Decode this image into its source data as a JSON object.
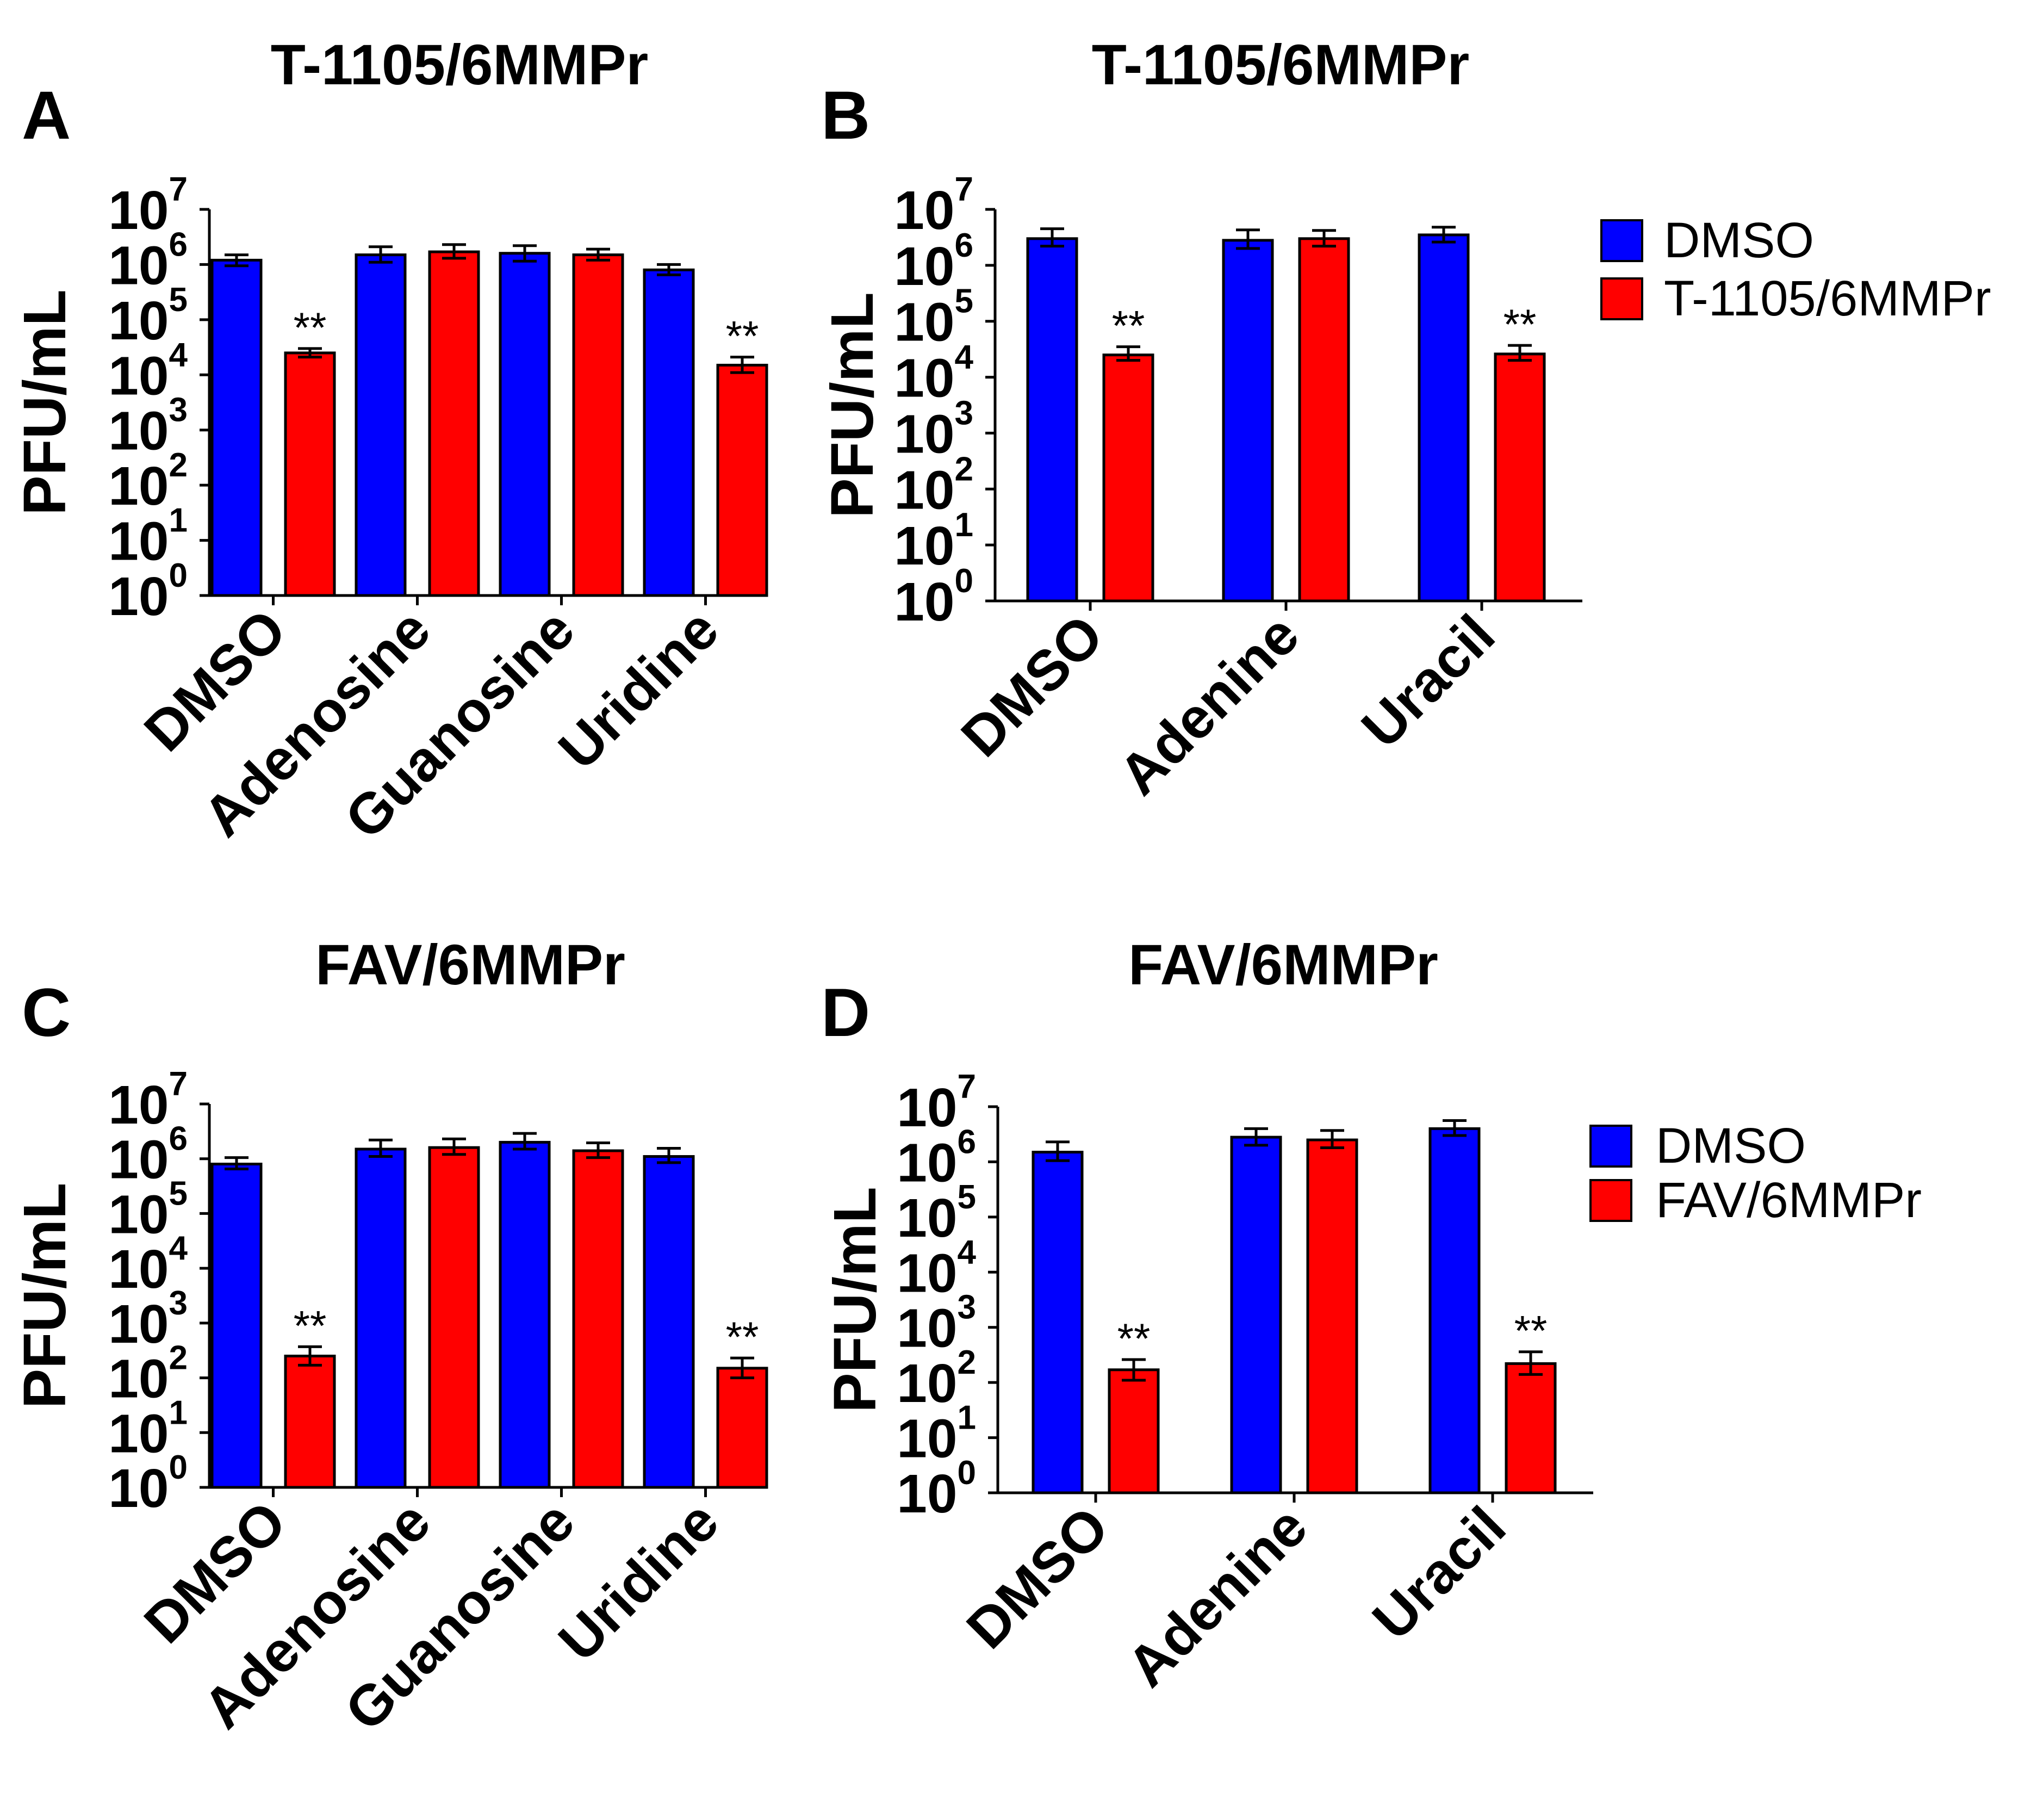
{
  "chart_data": [
    {
      "type": "bar",
      "panel_label": "A",
      "title": "T-1105/6MMPr",
      "ylabel": "PFU/mL",
      "yscale": "log",
      "ylim": [
        1,
        10000000
      ],
      "y_ticks": [
        {
          "base": "10",
          "exp": "0"
        },
        {
          "base": "10",
          "exp": "1"
        },
        {
          "base": "10",
          "exp": "2"
        },
        {
          "base": "10",
          "exp": "3"
        },
        {
          "base": "10",
          "exp": "4"
        },
        {
          "base": "10",
          "exp": "5"
        },
        {
          "base": "10",
          "exp": "6"
        },
        {
          "base": "10",
          "exp": "7"
        }
      ],
      "categories": [
        "DMSO",
        "Adenosine",
        "Guanosine",
        "Uridine"
      ],
      "series": [
        {
          "name": "DMSO",
          "color": "#0000ff",
          "values": [
            1200000,
            1500000,
            1600000,
            800000
          ],
          "err_low": [
            950000,
            1100000,
            1150000,
            650000
          ],
          "err_high": [
            1500000,
            2100000,
            2200000,
            1000000
          ]
        },
        {
          "name": "T-1105/6MMPr",
          "color": "#ff0000",
          "values": [
            25000,
            1700000,
            1500000,
            15000
          ],
          "err_low": [
            21000,
            1300000,
            1200000,
            11000
          ],
          "err_high": [
            30000,
            2300000,
            1900000,
            21000
          ]
        }
      ],
      "annotations": [
        {
          "series": 1,
          "category": 0,
          "text": "**"
        },
        {
          "series": 1,
          "category": 3,
          "text": "**"
        }
      ]
    },
    {
      "type": "bar",
      "panel_label": "B",
      "title": "T-1105/6MMPr",
      "ylabel": "PFU/mL",
      "yscale": "log",
      "ylim": [
        1,
        10000000
      ],
      "y_ticks": [
        {
          "base": "10",
          "exp": "0"
        },
        {
          "base": "10",
          "exp": "1"
        },
        {
          "base": "10",
          "exp": "2"
        },
        {
          "base": "10",
          "exp": "3"
        },
        {
          "base": "10",
          "exp": "4"
        },
        {
          "base": "10",
          "exp": "5"
        },
        {
          "base": "10",
          "exp": "6"
        },
        {
          "base": "10",
          "exp": "7"
        }
      ],
      "categories": [
        "DMSO",
        "Adenine",
        "Uracil"
      ],
      "series": [
        {
          "name": "DMSO",
          "color": "#0000ff",
          "values": [
            3000000,
            2800000,
            3500000
          ],
          "err_low": [
            2200000,
            2000000,
            2600000
          ],
          "err_high": [
            4500000,
            4300000,
            4800000
          ]
        },
        {
          "name": "T-1105/6MMPr",
          "color": "#ff0000",
          "values": [
            25000,
            3000000,
            26000
          ],
          "err_low": [
            20000,
            2200000,
            20000
          ],
          "err_high": [
            35000,
            4200000,
            37000
          ]
        }
      ],
      "annotations": [
        {
          "series": 1,
          "category": 0,
          "text": "**"
        },
        {
          "series": 1,
          "category": 2,
          "text": "**"
        }
      ],
      "legend": {
        "position": "right",
        "entries": [
          {
            "label": "DMSO",
            "color": "#0000ff"
          },
          {
            "label": "T-1105/6MMPr",
            "color": "#ff0000"
          }
        ]
      }
    },
    {
      "type": "bar",
      "panel_label": "C",
      "title": "FAV/6MMPr",
      "ylabel": "PFU/mL",
      "yscale": "log",
      "ylim": [
        1,
        10000000
      ],
      "y_ticks": [
        {
          "base": "10",
          "exp": "0"
        },
        {
          "base": "10",
          "exp": "1"
        },
        {
          "base": "10",
          "exp": "2"
        },
        {
          "base": "10",
          "exp": "3"
        },
        {
          "base": "10",
          "exp": "4"
        },
        {
          "base": "10",
          "exp": "5"
        },
        {
          "base": "10",
          "exp": "6"
        },
        {
          "base": "10",
          "exp": "7"
        }
      ],
      "categories": [
        "DMSO",
        "Adenosine",
        "Guanosine",
        "Uridine"
      ],
      "series": [
        {
          "name": "DMSO",
          "color": "#0000ff",
          "values": [
            800000,
            1500000,
            2000000,
            1100000
          ],
          "err_low": [
            650000,
            1100000,
            1500000,
            850000
          ],
          "err_high": [
            1050000,
            2200000,
            2900000,
            1550000
          ]
        },
        {
          "name": "FAV/6MMPr",
          "color": "#ff0000",
          "values": [
            250,
            1600000,
            1400000,
            150
          ],
          "err_low": [
            170,
            1200000,
            1050000,
            100
          ],
          "err_high": [
            370,
            2300000,
            1950000,
            230
          ]
        }
      ],
      "annotations": [
        {
          "series": 1,
          "category": 0,
          "text": "**"
        },
        {
          "series": 1,
          "category": 3,
          "text": "**"
        }
      ]
    },
    {
      "type": "bar",
      "panel_label": "D",
      "title": "FAV/6MMPr",
      "ylabel": "PFU/mL",
      "yscale": "log",
      "ylim": [
        1,
        10000000
      ],
      "y_ticks": [
        {
          "base": "10",
          "exp": "0"
        },
        {
          "base": "10",
          "exp": "1"
        },
        {
          "base": "10",
          "exp": "2"
        },
        {
          "base": "10",
          "exp": "3"
        },
        {
          "base": "10",
          "exp": "4"
        },
        {
          "base": "10",
          "exp": "5"
        },
        {
          "base": "10",
          "exp": "6"
        },
        {
          "base": "10",
          "exp": "7"
        }
      ],
      "categories": [
        "DMSO",
        "Adenine",
        "Uracil"
      ],
      "series": [
        {
          "name": "DMSO",
          "color": "#0000ff",
          "values": [
            1500000,
            2800000,
            4000000
          ],
          "err_low": [
            1050000,
            2000000,
            3000000
          ],
          "err_high": [
            2300000,
            4000000,
            5600000
          ]
        },
        {
          "name": "FAV/6MMPr",
          "color": "#ff0000",
          "values": [
            170,
            2500000,
            220
          ],
          "err_low": [
            110,
            1800000,
            140
          ],
          "err_high": [
            260,
            3700000,
            360
          ]
        }
      ],
      "annotations": [
        {
          "series": 1,
          "category": 0,
          "text": "**"
        },
        {
          "series": 1,
          "category": 2,
          "text": "**"
        }
      ],
      "legend": {
        "position": "right",
        "entries": [
          {
            "label": "DMSO",
            "color": "#0000ff"
          },
          {
            "label": "FAV/6MMPr",
            "color": "#ff0000"
          }
        ]
      }
    }
  ]
}
